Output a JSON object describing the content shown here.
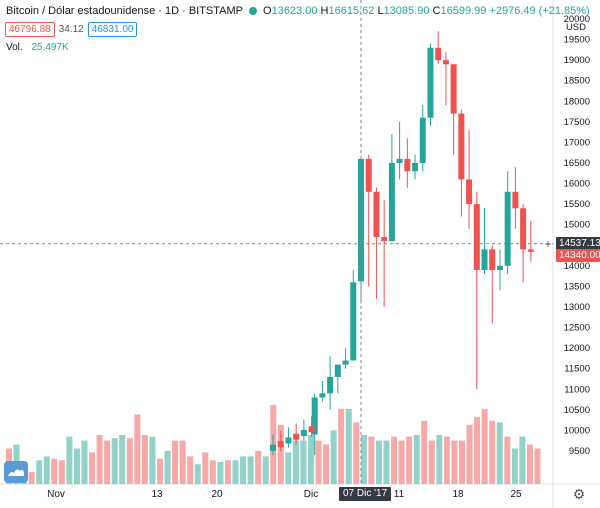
{
  "legend": {
    "symbol": "Bitcoin / Dólar estadounidense · 1D · BITSTAMP",
    "open_label": "O",
    "open": "13623.00",
    "high_label": "H",
    "high": "16615.62",
    "low_label": "L",
    "low": "13085.90",
    "close_label": "C",
    "close": "16599.99",
    "change": "+2976.49 (+21.85%)"
  },
  "quote": {
    "bid": "46796.88",
    "spread": "34.12",
    "ask": "46831.00"
  },
  "volume": {
    "label": "Vol.",
    "value": "25.497K"
  },
  "crosshair": {
    "x_label": "07 Dic '17",
    "y_label": "14537.13"
  },
  "last_price": "14340.00",
  "colors": {
    "up": "#26a69a",
    "down": "#ef5350",
    "up_vol": "#93d2c9",
    "down_vol": "#f7a9a7",
    "text": "#131722"
  },
  "icons": [
    "tradingview-logo-icon",
    "settings-gear-icon"
  ],
  "chart_data": {
    "type": "candlestick",
    "y_axis": {
      "unit": "USD",
      "min": 9000,
      "max": 20000,
      "ticks": [
        9500,
        10000,
        10500,
        11000,
        11500,
        12000,
        12500,
        13000,
        13500,
        14000,
        14500,
        15000,
        15500,
        16000,
        16500,
        17000,
        17500,
        18000,
        18500,
        19000,
        19500,
        20000
      ]
    },
    "x_axis": {
      "labels": [
        "Nov",
        "13",
        "20",
        "Dic",
        "11",
        "18",
        "25"
      ]
    },
    "candles": [
      {
        "date": "2017-12-01",
        "o": 9900,
        "h": 10900,
        "l": 9400,
        "c": 10800
      },
      {
        "date": "2017-12-02",
        "o": 10800,
        "h": 11200,
        "l": 10700,
        "c": 10900
      },
      {
        "date": "2017-12-03",
        "o": 10900,
        "h": 11800,
        "l": 10500,
        "c": 11300
      },
      {
        "date": "2017-12-04",
        "o": 11300,
        "h": 11600,
        "l": 10900,
        "c": 11600
      },
      {
        "date": "2017-12-05",
        "o": 11600,
        "h": 12000,
        "l": 11500,
        "c": 11700
      },
      {
        "date": "2017-12-06",
        "o": 11700,
        "h": 13900,
        "l": 11700,
        "c": 13600
      },
      {
        "date": "2017-12-07",
        "o": 13623,
        "h": 16615.62,
        "l": 13085.9,
        "c": 16599.99
      },
      {
        "date": "2017-12-08",
        "o": 16600,
        "h": 16700,
        "l": 13500,
        "c": 15800
      },
      {
        "date": "2017-12-09",
        "o": 15800,
        "h": 15900,
        "l": 13200,
        "c": 14700
      },
      {
        "date": "2017-12-10",
        "o": 14700,
        "h": 15600,
        "l": 13000,
        "c": 14600
      },
      {
        "date": "2017-12-11",
        "o": 14600,
        "h": 17200,
        "l": 14600,
        "c": 16500
      },
      {
        "date": "2017-12-12",
        "o": 16500,
        "h": 17500,
        "l": 16100,
        "c": 16600
      },
      {
        "date": "2017-12-13",
        "o": 16600,
        "h": 17100,
        "l": 15900,
        "c": 16300
      },
      {
        "date": "2017-12-14",
        "o": 16300,
        "h": 16700,
        "l": 16100,
        "c": 16500
      },
      {
        "date": "2017-12-15",
        "o": 16500,
        "h": 17900,
        "l": 16300,
        "c": 17600
      },
      {
        "date": "2017-12-16",
        "o": 17600,
        "h": 19400,
        "l": 17400,
        "c": 19300
      },
      {
        "date": "2017-12-17",
        "o": 19300,
        "h": 19700,
        "l": 18900,
        "c": 19000
      },
      {
        "date": "2017-12-18",
        "o": 19000,
        "h": 19200,
        "l": 17900,
        "c": 18900
      },
      {
        "date": "2017-12-19",
        "o": 18900,
        "h": 18900,
        "l": 16700,
        "c": 17700
      },
      {
        "date": "2017-12-20",
        "o": 17700,
        "h": 17800,
        "l": 15200,
        "c": 16100
      },
      {
        "date": "2017-12-21",
        "o": 16100,
        "h": 17300,
        "l": 14900,
        "c": 15500
      },
      {
        "date": "2017-12-22",
        "o": 15500,
        "h": 15800,
        "l": 11000,
        "c": 13900
      },
      {
        "date": "2017-12-23",
        "o": 13900,
        "h": 15400,
        "l": 13800,
        "c": 14400
      },
      {
        "date": "2017-12-24",
        "o": 14400,
        "h": 14500,
        "l": 12600,
        "c": 13900
      },
      {
        "date": "2017-12-25",
        "o": 13900,
        "h": 14400,
        "l": 13400,
        "c": 14000
      },
      {
        "date": "2017-12-26",
        "o": 14000,
        "h": 16300,
        "l": 13800,
        "c": 15800
      },
      {
        "date": "2017-12-27",
        "o": 15800,
        "h": 16400,
        "l": 14900,
        "c": 15400
      },
      {
        "date": "2017-12-28",
        "o": 15400,
        "h": 15500,
        "l": 13600,
        "c": 14400
      },
      {
        "date": "2017-12-29",
        "o": 14400,
        "h": 15100,
        "l": 14100,
        "c": 14340
      }
    ],
    "volume_bars": [
      {
        "up": false,
        "v": 0.45
      },
      {
        "up": true,
        "v": 0.5
      },
      {
        "up": true,
        "v": 0.2
      },
      {
        "up": false,
        "v": 0.15
      },
      {
        "up": true,
        "v": 0.3
      },
      {
        "up": true,
        "v": 0.35
      },
      {
        "up": false,
        "v": 0.32
      },
      {
        "up": false,
        "v": 0.3
      },
      {
        "up": true,
        "v": 0.6
      },
      {
        "up": true,
        "v": 0.45
      },
      {
        "up": true,
        "v": 0.55
      },
      {
        "up": false,
        "v": 0.4
      },
      {
        "up": false,
        "v": 0.62
      },
      {
        "up": false,
        "v": 0.55
      },
      {
        "up": true,
        "v": 0.58
      },
      {
        "up": true,
        "v": 0.62
      },
      {
        "up": false,
        "v": 0.58
      },
      {
        "up": false,
        "v": 0.88
      },
      {
        "up": false,
        "v": 0.62
      },
      {
        "up": true,
        "v": 0.6
      },
      {
        "up": false,
        "v": 0.32
      },
      {
        "up": true,
        "v": 0.42
      },
      {
        "up": false,
        "v": 0.55
      },
      {
        "up": false,
        "v": 0.55
      },
      {
        "up": false,
        "v": 0.35
      },
      {
        "up": true,
        "v": 0.25
      },
      {
        "up": false,
        "v": 0.4
      },
      {
        "up": false,
        "v": 0.3
      },
      {
        "up": true,
        "v": 0.28
      },
      {
        "up": false,
        "v": 0.3
      },
      {
        "up": true,
        "v": 0.3
      },
      {
        "up": true,
        "v": 0.35
      },
      {
        "up": true,
        "v": 0.35
      },
      {
        "up": false,
        "v": 0.42
      },
      {
        "up": true,
        "v": 0.35
      },
      {
        "up": false,
        "v": 1.0
      },
      {
        "up": false,
        "v": 0.75
      },
      {
        "up": true,
        "v": 0.4
      },
      {
        "up": true,
        "v": 0.55
      },
      {
        "up": true,
        "v": 0.55
      },
      {
        "up": true,
        "v": 0.62
      },
      {
        "up": false,
        "v": 0.55
      },
      {
        "up": false,
        "v": 0.5
      },
      {
        "up": true,
        "v": 0.68
      },
      {
        "up": false,
        "v": 0.95
      },
      {
        "up": true,
        "v": 0.95
      },
      {
        "up": false,
        "v": 0.78
      },
      {
        "up": true,
        "v": 0.62
      },
      {
        "up": false,
        "v": 0.6
      },
      {
        "up": true,
        "v": 0.55
      },
      {
        "up": true,
        "v": 0.55
      },
      {
        "up": false,
        "v": 0.6
      },
      {
        "up": false,
        "v": 0.55
      },
      {
        "up": false,
        "v": 0.6
      },
      {
        "up": true,
        "v": 0.62
      },
      {
        "up": false,
        "v": 0.8
      },
      {
        "up": false,
        "v": 0.55
      },
      {
        "up": true,
        "v": 0.62
      },
      {
        "up": false,
        "v": 0.6
      },
      {
        "up": false,
        "v": 0.55
      },
      {
        "up": false,
        "v": 0.55
      },
      {
        "up": false,
        "v": 0.75
      },
      {
        "up": false,
        "v": 0.85
      },
      {
        "up": false,
        "v": 0.95
      },
      {
        "up": false,
        "v": 0.8
      },
      {
        "up": true,
        "v": 0.78
      },
      {
        "up": false,
        "v": 0.6
      },
      {
        "up": true,
        "v": 0.45
      },
      {
        "up": true,
        "v": 0.6
      },
      {
        "up": false,
        "v": 0.5
      },
      {
        "up": false,
        "v": 0.45
      }
    ]
  }
}
